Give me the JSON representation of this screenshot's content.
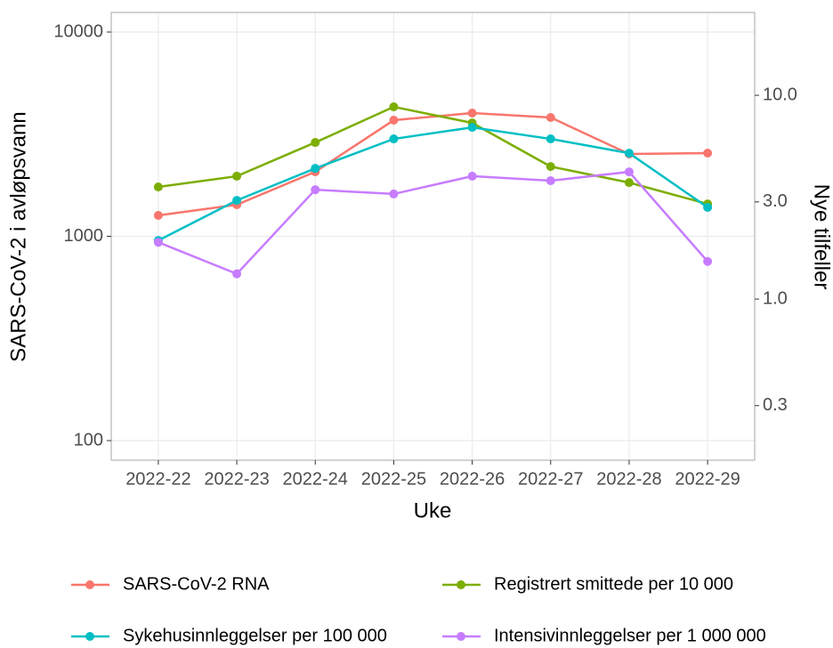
{
  "chart_data": {
    "type": "line",
    "categories": [
      "2022-22",
      "2022-23",
      "2022-24",
      "2022-25",
      "2022-26",
      "2022-27",
      "2022-28",
      "2022-29"
    ],
    "x_label": "Uke",
    "y_label": "SARS-CoV-2 i avløpsvann",
    "y2_label": "Nye tilfeller",
    "log_scale": true,
    "grid": true,
    "legend": "bottom",
    "ylim": [
      80.2,
      12470
    ],
    "yticks": [
      100,
      1000,
      10000
    ],
    "y2lim": [
      0.162,
      25.5
    ],
    "y2ticks": [
      {
        "value": 10,
        "label": "10.0"
      },
      {
        "value": 3,
        "label": "3.0"
      },
      {
        "value": 1,
        "label": "1.0"
      },
      0.3
    ],
    "series": [
      {
        "name": "SARS-CoV-2 RNA",
        "color": "#f8766d",
        "values": [
          1266,
          1428,
          2070,
          3703,
          4013,
          3816,
          2530,
          2555
        ]
      },
      {
        "name": "Registrert smittede per 10 000",
        "color": "#7cae00",
        "axis": "y2",
        "values": [
          3.55,
          4.01,
          5.87,
          8.78,
          7.32,
          4.47,
          3.73,
          2.93
        ]
      },
      {
        "name": "Sykehusinnleggelser per 100 000",
        "color": "#00bfc4",
        "axis": "y2",
        "values": [
          1.94,
          3.05,
          4.38,
          6.11,
          6.96,
          6.11,
          5.2,
          2.82
        ]
      },
      {
        "name": "Intensivinnleggelser per 1 000 000",
        "color": "#c77cff",
        "axis": "y2",
        "values": [
          1.9,
          1.33,
          3.44,
          3.28,
          4.01,
          3.81,
          4.21,
          1.53
        ]
      }
    ]
  }
}
